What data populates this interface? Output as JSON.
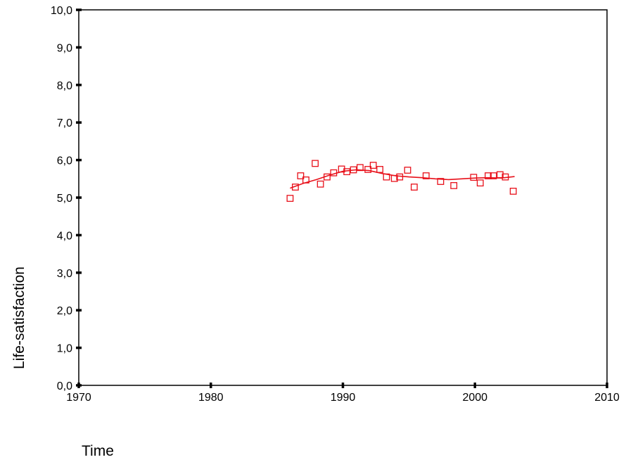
{
  "chart_data": {
    "type": "scatter",
    "xlabel": "Time",
    "ylabel": "Life-satisfaction",
    "xlim": [
      1970,
      2010
    ],
    "ylim": [
      0,
      10
    ],
    "x_ticks": [
      "1970",
      "1980",
      "1990",
      "2000",
      "2010"
    ],
    "y_ticks": [
      "0,0",
      "1,0",
      "2,0",
      "3,0",
      "4,0",
      "5,0",
      "6,0",
      "7,0",
      "8,0",
      "9,0",
      "10,0"
    ],
    "grid": false,
    "legend": "none",
    "marker_color": "#e8101a",
    "line_color": "#e8101a",
    "series": [
      {
        "marker": "hollow-square",
        "points": [
          [
            1986.0,
            4.98
          ],
          [
            1986.4,
            5.28
          ],
          [
            1986.8,
            5.58
          ],
          [
            1987.2,
            5.47
          ],
          [
            1987.9,
            5.91
          ],
          [
            1988.3,
            5.36
          ],
          [
            1988.8,
            5.55
          ],
          [
            1989.3,
            5.66
          ],
          [
            1989.9,
            5.76
          ],
          [
            1990.3,
            5.69
          ],
          [
            1990.8,
            5.74
          ],
          [
            1991.3,
            5.8
          ],
          [
            1991.9,
            5.75
          ],
          [
            1992.3,
            5.86
          ],
          [
            1992.8,
            5.75
          ],
          [
            1993.3,
            5.55
          ],
          [
            1993.9,
            5.51
          ],
          [
            1994.3,
            5.55
          ],
          [
            1994.9,
            5.73
          ],
          [
            1995.4,
            5.28
          ],
          [
            1996.3,
            5.58
          ],
          [
            1997.4,
            5.43
          ],
          [
            1998.4,
            5.32
          ],
          [
            1999.9,
            5.54
          ],
          [
            2000.4,
            5.39
          ],
          [
            2001.0,
            5.58
          ],
          [
            2001.4,
            5.58
          ],
          [
            2001.9,
            5.61
          ],
          [
            2002.3,
            5.55
          ],
          [
            2002.9,
            5.17
          ]
        ]
      },
      {
        "marker": "line",
        "points": [
          [
            1986.0,
            5.25
          ],
          [
            1987.0,
            5.38
          ],
          [
            1988.0,
            5.48
          ],
          [
            1989.0,
            5.6
          ],
          [
            1990.0,
            5.7
          ],
          [
            1991.0,
            5.74
          ],
          [
            1992.0,
            5.72
          ],
          [
            1993.0,
            5.64
          ],
          [
            1994.0,
            5.58
          ],
          [
            1995.0,
            5.55
          ],
          [
            1996.0,
            5.53
          ],
          [
            1997.0,
            5.5
          ],
          [
            1998.0,
            5.48
          ],
          [
            1999.0,
            5.5
          ],
          [
            2000.0,
            5.52
          ],
          [
            2001.0,
            5.53
          ],
          [
            2002.0,
            5.52
          ],
          [
            2003.0,
            5.56
          ]
        ]
      }
    ]
  }
}
